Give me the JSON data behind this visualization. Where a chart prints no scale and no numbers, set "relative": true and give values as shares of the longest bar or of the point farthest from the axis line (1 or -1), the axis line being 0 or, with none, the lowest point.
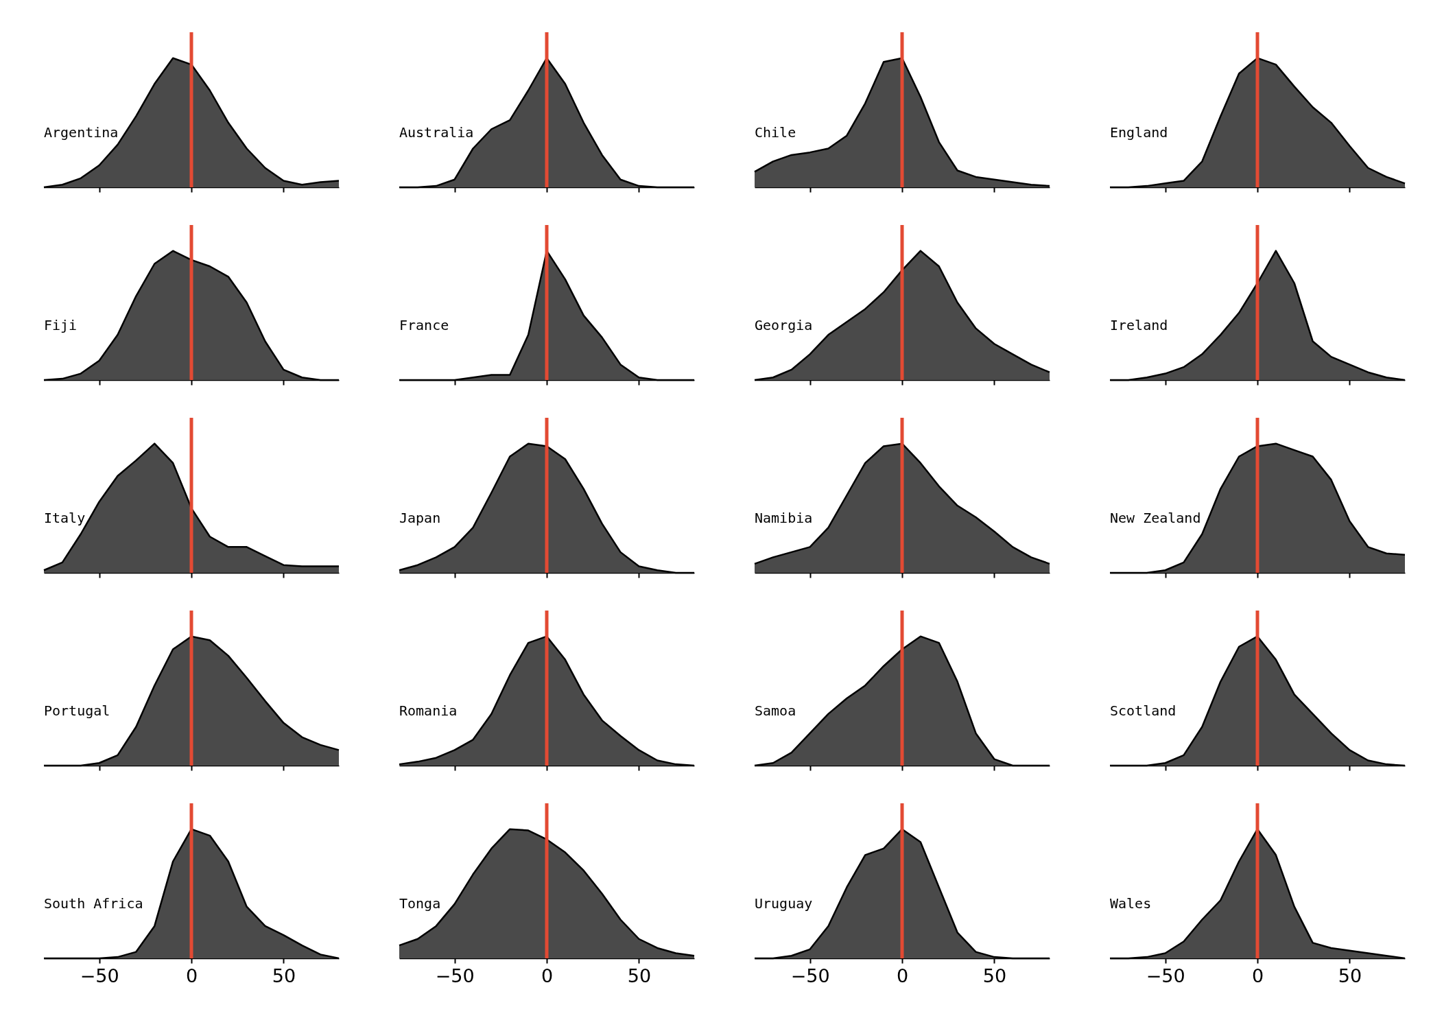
{
  "chart_data": [
    {
      "type": "area",
      "title": "Argentina",
      "x": [
        -80,
        -70,
        -60,
        -50,
        -40,
        -30,
        -20,
        -10,
        0,
        10,
        20,
        30,
        40,
        50,
        60,
        70,
        80
      ],
      "values": [
        0,
        0.02,
        0.07,
        0.17,
        0.33,
        0.55,
        0.8,
        1,
        0.95,
        0.75,
        0.5,
        0.3,
        0.15,
        0.05,
        0.02,
        0.04,
        0.05
      ],
      "color": "#4a4a4a",
      "relative": true,
      "xlim": [
        -80,
        80
      ],
      "xticks": [
        -50,
        0,
        50
      ],
      "ref_lines": [
        {
          "axis": "x",
          "value": 0,
          "color": "#e34a33"
        }
      ],
      "tick_labels": false
    },
    {
      "type": "area",
      "title": "Australia",
      "x": [
        -80,
        -70,
        -60,
        -50,
        -40,
        -30,
        -20,
        -10,
        0,
        10,
        20,
        30,
        40,
        50,
        60,
        70,
        80
      ],
      "values": [
        0,
        0,
        0.01,
        0.06,
        0.3,
        0.45,
        0.52,
        0.75,
        1,
        0.8,
        0.5,
        0.25,
        0.06,
        0.01,
        0,
        0,
        0
      ],
      "color": "#4a4a4a",
      "relative": true,
      "xlim": [
        -80,
        80
      ],
      "xticks": [
        -50,
        0,
        50
      ],
      "ref_lines": [
        {
          "axis": "x",
          "value": 0,
          "color": "#e34a33"
        }
      ],
      "tick_labels": false
    },
    {
      "type": "area",
      "title": "Chile",
      "x": [
        -80,
        -70,
        -60,
        -50,
        -40,
        -30,
        -20,
        -10,
        0,
        10,
        20,
        30,
        40,
        50,
        60,
        70,
        80
      ],
      "values": [
        0.12,
        0.2,
        0.25,
        0.27,
        0.3,
        0.4,
        0.65,
        0.97,
        1,
        0.7,
        0.35,
        0.13,
        0.08,
        0.06,
        0.04,
        0.02,
        0.01
      ],
      "color": "#4a4a4a",
      "relative": true,
      "xlim": [
        -80,
        80
      ],
      "xticks": [
        -50,
        0,
        50
      ],
      "ref_lines": [
        {
          "axis": "x",
          "value": 0,
          "color": "#e34a33"
        }
      ],
      "tick_labels": false
    },
    {
      "type": "area",
      "title": "England",
      "x": [
        -80,
        -70,
        -60,
        -50,
        -40,
        -30,
        -20,
        -10,
        0,
        10,
        20,
        30,
        40,
        50,
        60,
        70,
        80
      ],
      "values": [
        0,
        0,
        0.01,
        0.03,
        0.05,
        0.2,
        0.55,
        0.88,
        1,
        0.95,
        0.78,
        0.62,
        0.5,
        0.32,
        0.15,
        0.08,
        0.03
      ],
      "color": "#4a4a4a",
      "relative": true,
      "xlim": [
        -80,
        80
      ],
      "xticks": [
        -50,
        0,
        50
      ],
      "ref_lines": [
        {
          "axis": "x",
          "value": 0,
          "color": "#e34a33"
        }
      ],
      "tick_labels": false
    },
    {
      "type": "area",
      "title": "Fiji",
      "x": [
        -80,
        -70,
        -60,
        -50,
        -40,
        -30,
        -20,
        -10,
        0,
        10,
        20,
        30,
        40,
        50,
        60,
        70,
        80
      ],
      "values": [
        0,
        0.01,
        0.05,
        0.15,
        0.35,
        0.65,
        0.9,
        1,
        0.93,
        0.88,
        0.8,
        0.6,
        0.3,
        0.08,
        0.02,
        0,
        0
      ],
      "color": "#4a4a4a",
      "relative": true,
      "xlim": [
        -80,
        80
      ],
      "xticks": [
        -50,
        0,
        50
      ],
      "ref_lines": [
        {
          "axis": "x",
          "value": 0,
          "color": "#e34a33"
        }
      ],
      "tick_labels": false
    },
    {
      "type": "area",
      "title": "France",
      "x": [
        -80,
        -70,
        -60,
        -50,
        -40,
        -30,
        -20,
        -10,
        0,
        10,
        20,
        30,
        40,
        50,
        60,
        70,
        80
      ],
      "values": [
        0,
        0,
        0,
        0,
        0.02,
        0.04,
        0.04,
        0.35,
        1,
        0.78,
        0.5,
        0.33,
        0.12,
        0.02,
        0,
        0,
        0
      ],
      "color": "#4a4a4a",
      "relative": true,
      "xlim": [
        -80,
        80
      ],
      "xticks": [
        -50,
        0,
        50
      ],
      "ref_lines": [
        {
          "axis": "x",
          "value": 0,
          "color": "#e34a33"
        }
      ],
      "tick_labels": false
    },
    {
      "type": "area",
      "title": "Georgia",
      "x": [
        -80,
        -70,
        -60,
        -50,
        -40,
        -30,
        -20,
        -10,
        0,
        10,
        20,
        30,
        40,
        50,
        60,
        70,
        80
      ],
      "values": [
        0,
        0.02,
        0.08,
        0.2,
        0.35,
        0.45,
        0.55,
        0.68,
        0.85,
        1,
        0.88,
        0.6,
        0.4,
        0.28,
        0.2,
        0.12,
        0.06
      ],
      "color": "#4a4a4a",
      "relative": true,
      "xlim": [
        -80,
        80
      ],
      "xticks": [
        -50,
        0,
        50
      ],
      "ref_lines": [
        {
          "axis": "x",
          "value": 0,
          "color": "#e34a33"
        }
      ],
      "tick_labels": false
    },
    {
      "type": "area",
      "title": "Ireland",
      "x": [
        -80,
        -70,
        -60,
        -50,
        -40,
        -30,
        -20,
        -10,
        0,
        10,
        20,
        30,
        40,
        50,
        60,
        70,
        80
      ],
      "values": [
        0,
        0,
        0.02,
        0.05,
        0.1,
        0.2,
        0.35,
        0.52,
        0.75,
        1,
        0.75,
        0.3,
        0.18,
        0.12,
        0.06,
        0.02,
        0
      ],
      "color": "#4a4a4a",
      "relative": true,
      "xlim": [
        -80,
        80
      ],
      "xticks": [
        -50,
        0,
        50
      ],
      "ref_lines": [
        {
          "axis": "x",
          "value": 0,
          "color": "#e34a33"
        }
      ],
      "tick_labels": false
    },
    {
      "type": "area",
      "title": "Italy",
      "x": [
        -80,
        -70,
        -60,
        -50,
        -40,
        -30,
        -20,
        -10,
        0,
        10,
        20,
        30,
        40,
        50,
        60,
        70,
        80
      ],
      "values": [
        0.02,
        0.08,
        0.3,
        0.55,
        0.75,
        0.87,
        1,
        0.85,
        0.5,
        0.28,
        0.2,
        0.2,
        0.13,
        0.06,
        0.05,
        0.05,
        0.05
      ],
      "color": "#4a4a4a",
      "relative": true,
      "xlim": [
        -80,
        80
      ],
      "xticks": [
        -50,
        0,
        50
      ],
      "ref_lines": [
        {
          "axis": "x",
          "value": 0,
          "color": "#e34a33"
        }
      ],
      "tick_labels": false
    },
    {
      "type": "area",
      "title": "Japan",
      "x": [
        -80,
        -70,
        -60,
        -50,
        -40,
        -30,
        -20,
        -10,
        0,
        10,
        20,
        30,
        40,
        50,
        60,
        70,
        80
      ],
      "values": [
        0.02,
        0.06,
        0.12,
        0.2,
        0.35,
        0.62,
        0.9,
        1,
        0.98,
        0.88,
        0.65,
        0.38,
        0.16,
        0.05,
        0.02,
        0,
        0
      ],
      "color": "#4a4a4a",
      "relative": true,
      "xlim": [
        -80,
        80
      ],
      "xticks": [
        -50,
        0,
        50
      ],
      "ref_lines": [
        {
          "axis": "x",
          "value": 0,
          "color": "#e34a33"
        }
      ],
      "tick_labels": false
    },
    {
      "type": "area",
      "title": "Namibia",
      "x": [
        -80,
        -70,
        -60,
        -50,
        -40,
        -30,
        -20,
        -10,
        0,
        10,
        20,
        30,
        40,
        50,
        60,
        70,
        80
      ],
      "values": [
        0.07,
        0.12,
        0.16,
        0.2,
        0.35,
        0.6,
        0.85,
        0.98,
        1,
        0.85,
        0.67,
        0.52,
        0.43,
        0.32,
        0.2,
        0.12,
        0.07
      ],
      "color": "#4a4a4a",
      "relative": true,
      "xlim": [
        -80,
        80
      ],
      "xticks": [
        -50,
        0,
        50
      ],
      "ref_lines": [
        {
          "axis": "x",
          "value": 0,
          "color": "#e34a33"
        }
      ],
      "tick_labels": false
    },
    {
      "type": "area",
      "title": "New Zealand",
      "x": [
        -80,
        -70,
        -60,
        -50,
        -40,
        -30,
        -20,
        -10,
        0,
        10,
        20,
        30,
        40,
        50,
        60,
        70,
        80
      ],
      "values": [
        0,
        0,
        0,
        0.02,
        0.08,
        0.3,
        0.65,
        0.9,
        0.98,
        1,
        0.95,
        0.9,
        0.72,
        0.4,
        0.2,
        0.15,
        0.14
      ],
      "color": "#4a4a4a",
      "relative": true,
      "xlim": [
        -80,
        80
      ],
      "xticks": [
        -50,
        0,
        50
      ],
      "ref_lines": [
        {
          "axis": "x",
          "value": 0,
          "color": "#e34a33"
        }
      ],
      "tick_labels": false
    },
    {
      "type": "area",
      "title": "Portugal",
      "x": [
        -80,
        -70,
        -60,
        -50,
        -40,
        -30,
        -20,
        -10,
        0,
        10,
        20,
        30,
        40,
        50,
        60,
        70,
        80
      ],
      "values": [
        0,
        0,
        0,
        0.02,
        0.08,
        0.3,
        0.62,
        0.9,
        1,
        0.97,
        0.85,
        0.68,
        0.5,
        0.33,
        0.22,
        0.16,
        0.12
      ],
      "color": "#4a4a4a",
      "relative": true,
      "xlim": [
        -80,
        80
      ],
      "xticks": [
        -50,
        0,
        50
      ],
      "ref_lines": [
        {
          "axis": "x",
          "value": 0,
          "color": "#e34a33"
        }
      ],
      "tick_labels": false
    },
    {
      "type": "area",
      "title": "Romania",
      "x": [
        -80,
        -70,
        -60,
        -50,
        -40,
        -30,
        -20,
        -10,
        0,
        10,
        20,
        30,
        40,
        50,
        60,
        70,
        80
      ],
      "values": [
        0.01,
        0.03,
        0.06,
        0.12,
        0.2,
        0.4,
        0.7,
        0.95,
        1,
        0.82,
        0.55,
        0.35,
        0.23,
        0.12,
        0.04,
        0.01,
        0
      ],
      "color": "#4a4a4a",
      "relative": true,
      "xlim": [
        -80,
        80
      ],
      "xticks": [
        -50,
        0,
        50
      ],
      "ref_lines": [
        {
          "axis": "x",
          "value": 0,
          "color": "#e34a33"
        }
      ],
      "tick_labels": false
    },
    {
      "type": "area",
      "title": "Samoa",
      "x": [
        -80,
        -70,
        -60,
        -50,
        -40,
        -30,
        -20,
        -10,
        0,
        10,
        20,
        30,
        40,
        50,
        60,
        70,
        80
      ],
      "values": [
        0,
        0.02,
        0.1,
        0.25,
        0.4,
        0.52,
        0.62,
        0.77,
        0.9,
        1,
        0.95,
        0.65,
        0.25,
        0.05,
        0,
        0,
        0
      ],
      "color": "#4a4a4a",
      "relative": true,
      "xlim": [
        -80,
        80
      ],
      "xticks": [
        -50,
        0,
        50
      ],
      "ref_lines": [
        {
          "axis": "x",
          "value": 0,
          "color": "#e34a33"
        }
      ],
      "tick_labels": false
    },
    {
      "type": "area",
      "title": "Scotland",
      "x": [
        -80,
        -70,
        -60,
        -50,
        -40,
        -30,
        -20,
        -10,
        0,
        10,
        20,
        30,
        40,
        50,
        60,
        70,
        80
      ],
      "values": [
        0,
        0,
        0,
        0.02,
        0.08,
        0.3,
        0.65,
        0.92,
        1,
        0.82,
        0.55,
        0.4,
        0.25,
        0.12,
        0.04,
        0.01,
        0
      ],
      "color": "#4a4a4a",
      "relative": true,
      "xlim": [
        -80,
        80
      ],
      "xticks": [
        -50,
        0,
        50
      ],
      "ref_lines": [
        {
          "axis": "x",
          "value": 0,
          "color": "#e34a33"
        }
      ],
      "tick_labels": false
    },
    {
      "type": "area",
      "title": "South Africa",
      "x": [
        -80,
        -70,
        -60,
        -50,
        -40,
        -30,
        -20,
        -10,
        0,
        10,
        20,
        30,
        40,
        50,
        60,
        70,
        80
      ],
      "values": [
        0,
        0,
        0,
        0,
        0.01,
        0.05,
        0.25,
        0.75,
        1,
        0.95,
        0.75,
        0.4,
        0.25,
        0.18,
        0.1,
        0.03,
        0
      ],
      "color": "#4a4a4a",
      "relative": true,
      "xlim": [
        -80,
        80
      ],
      "xticks": [
        -50,
        0,
        50
      ],
      "ref_lines": [
        {
          "axis": "x",
          "value": 0,
          "color": "#e34a33"
        }
      ],
      "tick_labels": "x"
    },
    {
      "type": "area",
      "title": "Tonga",
      "x": [
        -80,
        -70,
        -60,
        -50,
        -40,
        -30,
        -20,
        -10,
        0,
        10,
        20,
        30,
        40,
        50,
        60,
        70,
        80
      ],
      "values": [
        0.1,
        0.15,
        0.25,
        0.42,
        0.65,
        0.85,
        1,
        0.99,
        0.92,
        0.82,
        0.68,
        0.5,
        0.3,
        0.15,
        0.08,
        0.04,
        0.02
      ],
      "color": "#4a4a4a",
      "relative": true,
      "xlim": [
        -80,
        80
      ],
      "xticks": [
        -50,
        0,
        50
      ],
      "ref_lines": [
        {
          "axis": "x",
          "value": 0,
          "color": "#e34a33"
        }
      ],
      "tick_labels": "x"
    },
    {
      "type": "area",
      "title": "Uruguay",
      "x": [
        -80,
        -70,
        -60,
        -50,
        -40,
        -30,
        -20,
        -10,
        0,
        10,
        20,
        30,
        40,
        50,
        60,
        70,
        80
      ],
      "values": [
        0,
        0,
        0.02,
        0.07,
        0.25,
        0.55,
        0.8,
        0.85,
        1,
        0.9,
        0.55,
        0.2,
        0.05,
        0.01,
        0,
        0,
        0
      ],
      "color": "#4a4a4a",
      "relative": true,
      "xlim": [
        -80,
        80
      ],
      "xticks": [
        -50,
        0,
        50
      ],
      "ref_lines": [
        {
          "axis": "x",
          "value": 0,
          "color": "#e34a33"
        }
      ],
      "tick_labels": "x"
    },
    {
      "type": "area",
      "title": "Wales",
      "x": [
        -80,
        -70,
        -60,
        -50,
        -40,
        -30,
        -20,
        -10,
        0,
        10,
        20,
        30,
        40,
        50,
        60,
        70,
        80
      ],
      "values": [
        0,
        0,
        0.01,
        0.04,
        0.13,
        0.3,
        0.45,
        0.75,
        1,
        0.8,
        0.4,
        0.12,
        0.08,
        0.06,
        0.04,
        0.02,
        0
      ],
      "color": "#4a4a4a",
      "relative": true,
      "xlim": [
        -80,
        80
      ],
      "xticks": [
        -50,
        0,
        50
      ],
      "ref_lines": [
        {
          "axis": "x",
          "value": 0,
          "color": "#e34a33"
        }
      ],
      "tick_labels": "x"
    }
  ]
}
